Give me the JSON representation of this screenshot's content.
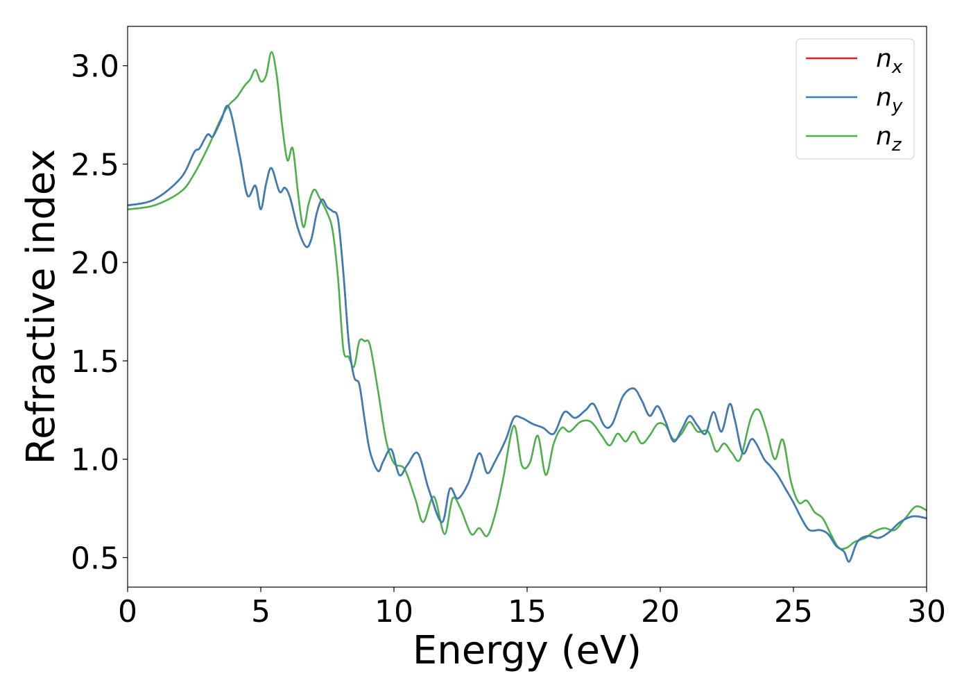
{
  "chart_data": {
    "type": "line",
    "title": "",
    "xlabel": "Energy (eV)",
    "ylabel": "Refractive index",
    "xlim": [
      0,
      30
    ],
    "ylim": [
      0.35,
      3.2
    ],
    "xticks": [
      0,
      5,
      10,
      15,
      20,
      25,
      30
    ],
    "xtick_labels": [
      "0",
      "5",
      "10",
      "15",
      "20",
      "25",
      "30"
    ],
    "yticks": [
      0.5,
      1.0,
      1.5,
      2.0,
      2.5,
      3.0
    ],
    "ytick_labels": [
      "0.5",
      "1.0",
      "1.5",
      "2.0",
      "2.5",
      "3.0"
    ],
    "grid": false,
    "legend_position": "top-right",
    "legend": [
      {
        "symbol": "n",
        "subscript": "x",
        "color": "#e41a1c"
      },
      {
        "symbol": "n",
        "subscript": "y",
        "color": "#377eb8"
      },
      {
        "symbol": "n",
        "subscript": "z",
        "color": "#4daf4a"
      }
    ],
    "series": [
      {
        "name": "n_x",
        "color": "#e41a1c",
        "x": [
          0,
          1,
          2,
          2.5,
          2.7,
          3,
          3.2,
          3.5,
          3.8,
          4.2,
          4.5,
          4.8,
          5.0,
          5.2,
          5.4,
          5.7,
          5.9,
          6.1,
          6.4,
          6.7,
          6.9,
          7.1,
          7.3,
          7.5,
          7.7,
          7.9,
          8.1,
          8.3,
          8.5,
          8.7,
          8.9,
          9.1,
          9.4,
          9.6,
          9.9,
          10.2,
          10.5,
          10.9,
          11.3,
          11.8,
          12.1,
          12.4,
          12.8,
          13.2,
          13.5,
          13.8,
          14.2,
          14.5,
          14.8,
          15.2,
          15.6,
          16.0,
          16.4,
          16.8,
          17.2,
          17.5,
          17.9,
          18.2,
          18.6,
          19.0,
          19.3,
          19.6,
          19.9,
          20.2,
          20.5,
          20.8,
          21.1,
          21.4,
          21.7,
          22.0,
          22.3,
          22.6,
          22.8,
          23.1,
          23.4,
          23.6,
          23.9,
          24.1,
          24.4,
          24.7,
          25.0,
          25.3,
          25.6,
          26.0,
          26.3,
          26.6,
          26.9,
          27.1,
          27.4,
          27.8,
          28.2,
          28.6,
          29.0,
          29.5,
          30.0
        ],
        "y": [
          2.29,
          2.32,
          2.43,
          2.56,
          2.58,
          2.65,
          2.64,
          2.72,
          2.79,
          2.55,
          2.34,
          2.39,
          2.27,
          2.4,
          2.48,
          2.36,
          2.38,
          2.33,
          2.17,
          2.08,
          2.12,
          2.25,
          2.32,
          2.28,
          2.26,
          2.22,
          1.95,
          1.6,
          1.42,
          1.38,
          1.2,
          1.04,
          0.94,
          0.99,
          1.05,
          0.92,
          0.97,
          1.03,
          0.85,
          0.68,
          0.85,
          0.8,
          0.88,
          1.03,
          0.93,
          0.99,
          1.1,
          1.21,
          1.21,
          1.18,
          1.16,
          1.13,
          1.24,
          1.21,
          1.25,
          1.28,
          1.17,
          1.18,
          1.32,
          1.36,
          1.3,
          1.22,
          1.27,
          1.19,
          1.09,
          1.15,
          1.22,
          1.17,
          1.13,
          1.24,
          1.14,
          1.28,
          1.2,
          1.03,
          1.1,
          1.08,
          1.0,
          0.97,
          0.92,
          0.85,
          0.78,
          0.7,
          0.64,
          0.64,
          0.62,
          0.56,
          0.53,
          0.48,
          0.58,
          0.61,
          0.6,
          0.63,
          0.68,
          0.71,
          0.7
        ]
      },
      {
        "name": "n_y",
        "color": "#377eb8",
        "x": [
          0,
          1,
          2,
          2.5,
          2.7,
          3,
          3.2,
          3.5,
          3.8,
          4.2,
          4.5,
          4.8,
          5.0,
          5.2,
          5.4,
          5.7,
          5.9,
          6.1,
          6.4,
          6.7,
          6.9,
          7.1,
          7.3,
          7.5,
          7.7,
          7.9,
          8.1,
          8.3,
          8.5,
          8.7,
          8.9,
          9.1,
          9.4,
          9.6,
          9.9,
          10.2,
          10.5,
          10.9,
          11.3,
          11.8,
          12.1,
          12.4,
          12.8,
          13.2,
          13.5,
          13.8,
          14.2,
          14.5,
          14.8,
          15.2,
          15.6,
          16.0,
          16.4,
          16.8,
          17.2,
          17.5,
          17.9,
          18.2,
          18.6,
          19.0,
          19.3,
          19.6,
          19.9,
          20.2,
          20.5,
          20.8,
          21.1,
          21.4,
          21.7,
          22.0,
          22.3,
          22.6,
          22.8,
          23.1,
          23.4,
          23.6,
          23.9,
          24.1,
          24.4,
          24.7,
          25.0,
          25.3,
          25.6,
          26.0,
          26.3,
          26.6,
          26.9,
          27.1,
          27.4,
          27.8,
          28.2,
          28.6,
          29.0,
          29.5,
          30.0
        ],
        "y": [
          2.29,
          2.32,
          2.43,
          2.56,
          2.58,
          2.65,
          2.64,
          2.72,
          2.79,
          2.55,
          2.34,
          2.39,
          2.27,
          2.4,
          2.48,
          2.36,
          2.38,
          2.33,
          2.17,
          2.08,
          2.12,
          2.25,
          2.32,
          2.28,
          2.26,
          2.22,
          1.95,
          1.6,
          1.42,
          1.38,
          1.2,
          1.04,
          0.94,
          0.99,
          1.05,
          0.92,
          0.97,
          1.03,
          0.85,
          0.68,
          0.85,
          0.8,
          0.88,
          1.03,
          0.93,
          0.99,
          1.1,
          1.21,
          1.21,
          1.18,
          1.16,
          1.13,
          1.24,
          1.21,
          1.25,
          1.28,
          1.17,
          1.18,
          1.32,
          1.36,
          1.3,
          1.22,
          1.27,
          1.19,
          1.09,
          1.15,
          1.22,
          1.17,
          1.13,
          1.24,
          1.14,
          1.28,
          1.2,
          1.03,
          1.1,
          1.08,
          1.0,
          0.97,
          0.92,
          0.85,
          0.78,
          0.7,
          0.64,
          0.64,
          0.62,
          0.56,
          0.53,
          0.48,
          0.58,
          0.61,
          0.6,
          0.63,
          0.68,
          0.71,
          0.7
        ]
      },
      {
        "name": "n_z",
        "color": "#4daf4a",
        "x": [
          0,
          1,
          2,
          2.5,
          3,
          3.5,
          3.8,
          4.1,
          4.4,
          4.6,
          4.8,
          5.0,
          5.2,
          5.4,
          5.6,
          5.8,
          6.0,
          6.2,
          6.4,
          6.6,
          6.8,
          7.0,
          7.2,
          7.5,
          7.7,
          7.9,
          8.1,
          8.3,
          8.5,
          8.7,
          8.9,
          9.1,
          9.4,
          9.7,
          10.0,
          10.4,
          10.8,
          11.1,
          11.5,
          11.9,
          12.2,
          12.5,
          12.9,
          13.2,
          13.5,
          13.8,
          14.1,
          14.5,
          14.8,
          15.1,
          15.4,
          15.7,
          16.0,
          16.3,
          16.6,
          17.0,
          17.4,
          17.8,
          18.1,
          18.4,
          18.7,
          19.0,
          19.3,
          19.6,
          19.9,
          20.2,
          20.5,
          20.8,
          21.1,
          21.4,
          21.8,
          22.1,
          22.4,
          22.7,
          23.0,
          23.4,
          23.7,
          24.0,
          24.3,
          24.6,
          24.9,
          25.2,
          25.5,
          25.8,
          26.1,
          26.4,
          26.7,
          27.0,
          27.3,
          27.7,
          28.0,
          28.4,
          28.8,
          29.2,
          29.6,
          30.0
        ],
        "y": [
          2.27,
          2.29,
          2.36,
          2.45,
          2.58,
          2.73,
          2.8,
          2.84,
          2.9,
          2.93,
          2.98,
          2.92,
          2.95,
          3.07,
          2.95,
          2.7,
          2.52,
          2.58,
          2.35,
          2.18,
          2.3,
          2.37,
          2.33,
          2.25,
          2.16,
          1.92,
          1.56,
          1.52,
          1.47,
          1.6,
          1.6,
          1.58,
          1.35,
          1.1,
          0.98,
          0.95,
          0.8,
          0.68,
          0.81,
          0.62,
          0.8,
          0.75,
          0.62,
          0.65,
          0.61,
          0.72,
          0.9,
          1.17,
          0.97,
          0.98,
          1.12,
          0.92,
          1.08,
          1.16,
          1.14,
          1.19,
          1.19,
          1.12,
          1.07,
          1.13,
          1.09,
          1.14,
          1.08,
          1.12,
          1.18,
          1.17,
          1.1,
          1.13,
          1.19,
          1.14,
          1.14,
          1.04,
          1.08,
          1.03,
          1.0,
          1.21,
          1.25,
          1.14,
          1.0,
          1.1,
          0.89,
          0.78,
          0.79,
          0.73,
          0.7,
          0.62,
          0.55,
          0.55,
          0.58,
          0.6,
          0.63,
          0.65,
          0.64,
          0.7,
          0.76,
          0.74
        ]
      }
    ]
  }
}
